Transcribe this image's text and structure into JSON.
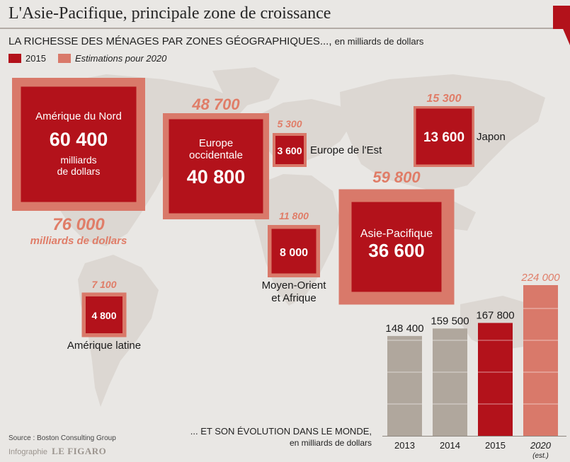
{
  "header": {
    "title": "L'Asie-Pacifique, principale zone de croissance",
    "subtitle": "LA RICHESSE DES MÉNAGES PAR ZONES GÉOGRAPHIQUES...,",
    "subtitle_unit": "en milliards de dollars"
  },
  "legend": {
    "item_2015": "2015",
    "item_2020": "Estimations pour 2020"
  },
  "colors": {
    "dark_red": "#b3121b",
    "salmon": "#d9796a",
    "salmon_text": "#e07d68",
    "gray_bar": "#b0a79d",
    "map_land": "#dcd7d2"
  },
  "footer": {
    "source": "Source : Boston Consulting Group",
    "credit_label": "Infographie",
    "credit_brand": "LE FIGARO",
    "bar_caption_line1": "... ET SON ÉVOLUTION DANS LE MONDE,",
    "bar_caption_line2": "en milliards de dollars"
  },
  "chart_data": [
    {
      "type": "bubble-squares",
      "regions": [
        {
          "name": "Amérique du Nord",
          "value_2015": 60400,
          "value_2015_text": "60 400",
          "unit_text_1": "milliards",
          "unit_text_2": "de dollars",
          "value_2020": 76000,
          "value_2020_text": "76 000",
          "value_2020_unit": "milliards de dollars"
        },
        {
          "name_line1": "Europe",
          "name_line2": "occidentale",
          "value_2015": 40800,
          "value_2015_text": "40 800",
          "value_2020": 48700,
          "value_2020_text": "48 700"
        },
        {
          "name": "Europe de l'Est",
          "value_2015": 3600,
          "value_2015_text": "3 600",
          "value_2020": 5300,
          "value_2020_text": "5 300"
        },
        {
          "name": "Japon",
          "value_2015": 13600,
          "value_2015_text": "13 600",
          "value_2020": 15300,
          "value_2020_text": "15 300"
        },
        {
          "name_line1": "Moyen-Orient",
          "name_line2": "et Afrique",
          "value_2015": 8000,
          "value_2015_text": "8 000",
          "value_2020": 11800,
          "value_2020_text": "11 800"
        },
        {
          "name": "Asie-Pacifique",
          "value_2015": 36600,
          "value_2015_text": "36 600",
          "value_2020": 59800,
          "value_2020_text": "59 800"
        },
        {
          "name": "Amérique latine",
          "value_2015": 4800,
          "value_2015_text": "4 800",
          "value_2020": 7100,
          "value_2020_text": "7 100"
        }
      ]
    },
    {
      "type": "bar",
      "categories": [
        "2013",
        "2014",
        "2015",
        "2020"
      ],
      "category_notes": [
        "",
        "",
        "",
        "(est.)"
      ],
      "values": [
        148400,
        159500,
        167800,
        224000
      ],
      "value_labels": [
        "148 400",
        "159 500",
        "167 800",
        "224 000"
      ],
      "colors": [
        "#b0a79d",
        "#b0a79d",
        "#b3121b",
        "#d9796a"
      ],
      "ylim": [
        0,
        224000
      ]
    }
  ]
}
